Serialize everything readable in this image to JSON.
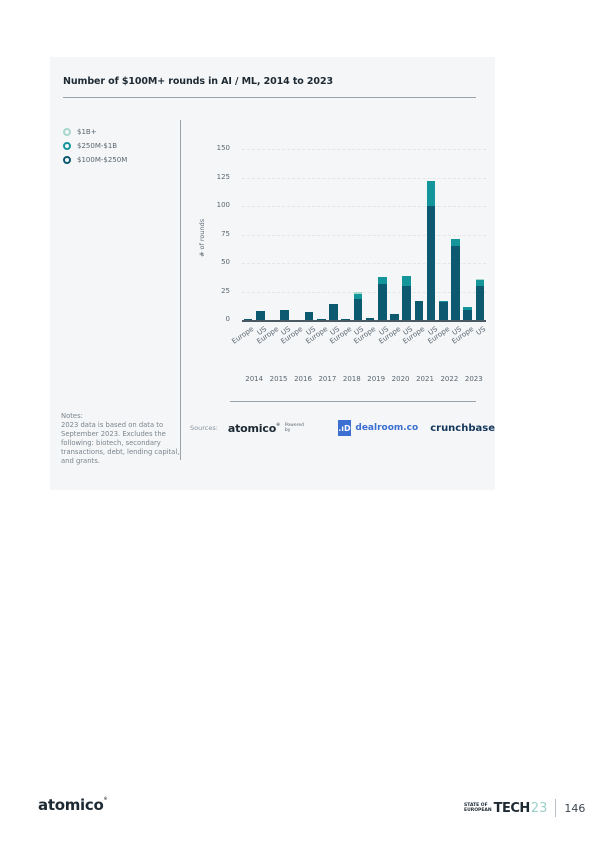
{
  "card": {
    "title": "Number of $100M+ rounds in AI / ML, 2014 to 2023"
  },
  "legend": [
    {
      "label": "$1B+",
      "color": "#a8d8cc"
    },
    {
      "label": "$250M-$1B",
      "color": "#14959a"
    },
    {
      "label": "$100M-$250M",
      "color": "#0d5a70"
    }
  ],
  "axis": {
    "ylabel": "# of rounds",
    "yticks": [
      "0",
      "25",
      "50",
      "75",
      "100",
      "125",
      "150"
    ]
  },
  "notes": {
    "heading": "Notes:",
    "text": "2023 data is based on data to September 2023. Excludes the following: biotech, secondary transactions, debt, lending capital, and grants."
  },
  "sources": {
    "label": "Sources:",
    "atomico": "atomico",
    "powered_by": "Powered by",
    "dealroom_icon": ".ıD",
    "dealroom": "dealroom.co",
    "crunchbase": "crunchbase"
  },
  "footer": {
    "logo": "atomico",
    "brand_small_1": "STATE OF",
    "brand_small_2": "EUROPEAN",
    "brand_tech": "TECH",
    "brand_year": "23",
    "page_number": "146"
  },
  "chart_data": {
    "type": "bar",
    "stacked": true,
    "title": "Number of $100M+ rounds in AI / ML, 2014 to 2023",
    "xlabel": "",
    "ylabel": "# of rounds",
    "ylim": [
      0,
      150
    ],
    "yticks": [
      0,
      25,
      50,
      75,
      100,
      125,
      150
    ],
    "grid": true,
    "legend_position": "top-left",
    "years": [
      "2014",
      "2015",
      "2016",
      "2017",
      "2018",
      "2019",
      "2020",
      "2021",
      "2022",
      "2023"
    ],
    "categories": [
      "Europe 2014",
      "US 2014",
      "Europe 2015",
      "US 2015",
      "Europe 2016",
      "US 2016",
      "Europe 2017",
      "US 2017",
      "Europe 2018",
      "US 2018",
      "Europe 2019",
      "US 2019",
      "Europe 2020",
      "US 2020",
      "Europe 2021",
      "US 2021",
      "Europe 2022",
      "US 2022",
      "Europe 2023",
      "US 2023"
    ],
    "series": [
      {
        "name": "$100M-$250M",
        "color": "#0d5a70",
        "values": [
          1,
          8,
          0,
          9,
          0,
          7,
          1,
          14,
          1,
          18,
          2,
          32,
          5,
          30,
          17,
          100,
          16,
          65,
          9,
          30
        ]
      },
      {
        "name": "$250M-$1B",
        "color": "#14959a",
        "values": [
          0,
          0,
          0,
          0,
          0,
          0,
          0,
          0,
          0,
          5,
          0,
          6,
          0,
          9,
          0,
          22,
          1,
          6,
          2,
          5
        ]
      },
      {
        "name": "$1B+",
        "color": "#a8d8cc",
        "values": [
          0,
          0,
          0,
          0,
          0,
          0,
          0,
          0,
          0,
          2,
          0,
          0,
          0,
          0,
          0,
          0,
          0,
          0,
          0,
          1
        ]
      }
    ]
  }
}
